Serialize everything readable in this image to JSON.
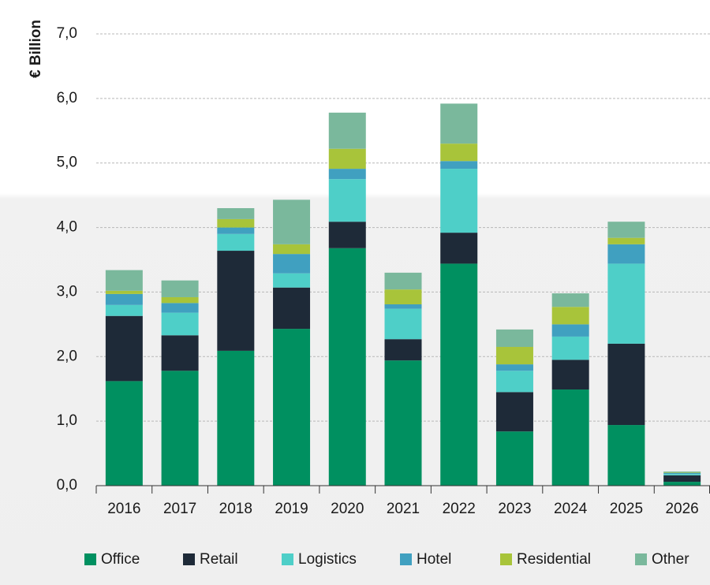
{
  "chart_data": {
    "type": "stacked_bar",
    "y_label": "€ Billion",
    "categories": [
      "2016",
      "2017",
      "2018",
      "2019",
      "2020",
      "2021",
      "2022",
      "2023",
      "2024",
      "2025",
      "2026"
    ],
    "series": [
      {
        "name": "Office",
        "color": "#009060",
        "values": [
          1.62,
          1.78,
          2.09,
          2.43,
          3.68,
          1.94,
          3.44,
          0.84,
          1.49,
          0.94,
          0.06
        ]
      },
      {
        "name": "Retail",
        "color": "#1e2a38",
        "values": [
          1.01,
          0.55,
          1.55,
          0.64,
          0.41,
          0.33,
          0.48,
          0.61,
          0.46,
          1.26,
          0.1
        ]
      },
      {
        "name": "Logistics",
        "color": "#4ecfc8",
        "values": [
          0.17,
          0.35,
          0.26,
          0.22,
          0.66,
          0.47,
          0.99,
          0.33,
          0.36,
          1.24,
          0.02
        ]
      },
      {
        "name": "Hotel",
        "color": "#40a0c0",
        "values": [
          0.17,
          0.15,
          0.1,
          0.3,
          0.16,
          0.07,
          0.12,
          0.1,
          0.19,
          0.3,
          0.02
        ]
      },
      {
        "name": "Residential",
        "color": "#a8c43a",
        "values": [
          0.05,
          0.09,
          0.13,
          0.15,
          0.31,
          0.23,
          0.27,
          0.27,
          0.27,
          0.1,
          0.01
        ]
      },
      {
        "name": "Other",
        "color": "#7ab89c",
        "values": [
          0.32,
          0.26,
          0.17,
          0.69,
          0.56,
          0.26,
          0.62,
          0.27,
          0.21,
          0.25,
          0.01
        ]
      }
    ],
    "ylim": [
      0,
      7
    ],
    "yticks": [
      {
        "value": 0,
        "label": "0,0"
      },
      {
        "value": 1,
        "label": "1,0"
      },
      {
        "value": 2,
        "label": "2,0"
      },
      {
        "value": 3,
        "label": "3,0"
      },
      {
        "value": 4,
        "label": "4,0"
      },
      {
        "value": 5,
        "label": "5,0"
      },
      {
        "value": 6,
        "label": "6,0"
      },
      {
        "value": 7,
        "label": "7,0"
      }
    ],
    "grid": true
  }
}
